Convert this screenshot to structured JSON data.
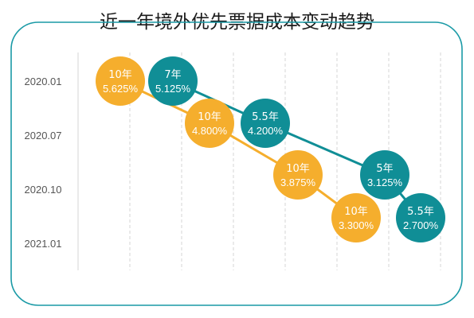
{
  "chart_data": {
    "type": "scatter",
    "title": "近一年境外优先票据成本变动趋势",
    "y_tick_labels": [
      "2020.01",
      "2020.07",
      "2020.10",
      "2021.01"
    ],
    "series": [
      {
        "color": "#F5AE2D",
        "points": [
          {
            "tenor": "10年",
            "rate": "5.625%",
            "row": 0
          },
          {
            "tenor": "10年",
            "rate": "4.800%",
            "row": 1
          },
          {
            "tenor": "10年",
            "rate": "3.875%",
            "row": 2
          },
          {
            "tenor": "10年",
            "rate": "3.300%",
            "row": 3
          }
        ]
      },
      {
        "color": "#108E96",
        "points": [
          {
            "tenor": "7年",
            "rate": "5.125%",
            "row": 0
          },
          {
            "tenor": "5.5年",
            "rate": "4.200%",
            "row": 1
          },
          {
            "tenor": "5年",
            "rate": "3.125%",
            "row": 2
          },
          {
            "tenor": "5.5年",
            "rate": "2.700%",
            "row": 3
          }
        ]
      }
    ],
    "colors": {
      "frame": "#1A9AA6",
      "grid": "#D6D6D6",
      "text_light": "#FFFFFF",
      "axis_text": "#555555"
    }
  }
}
